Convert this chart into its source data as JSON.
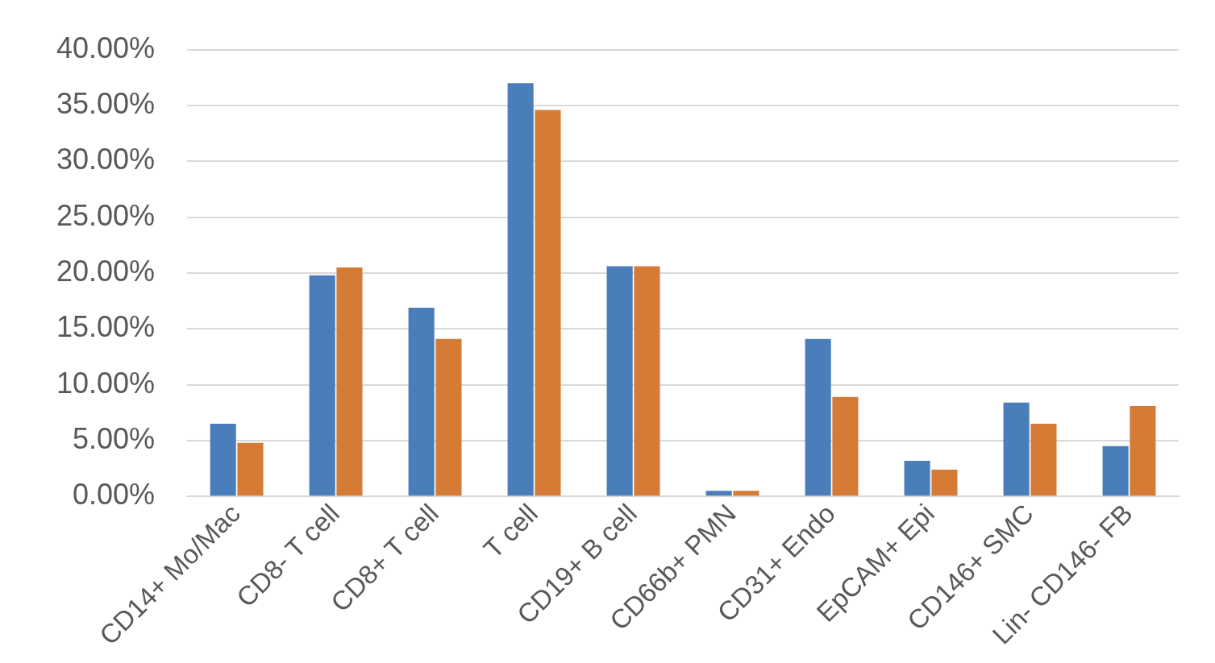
{
  "chart_data": {
    "type": "bar",
    "categories": [
      "CD14+ Mo/Mac",
      "CD8- T cell",
      "CD8+ T cell",
      "T cell",
      "CD19+ B cell",
      "CD66b+ PMN",
      "CD31+ Endo",
      "EpCAM+ Epi",
      "CD146+ SMC",
      "Lin- CD146- FB"
    ],
    "series": [
      {
        "color": "#4a7ebb",
        "values": [
          6.5,
          19.8,
          16.9,
          37.0,
          20.6,
          0.5,
          14.1,
          3.2,
          8.4,
          4.5
        ]
      },
      {
        "color": "#d57b36",
        "values": [
          4.8,
          20.5,
          14.1,
          34.6,
          20.6,
          0.5,
          8.9,
          2.4,
          6.5,
          8.1
        ]
      }
    ],
    "ylim": [
      0,
      40
    ],
    "yticks": [
      {
        "value": 0,
        "label": "0.00%"
      },
      {
        "value": 5,
        "label": "5.00%"
      },
      {
        "value": 10,
        "label": "10.00%"
      },
      {
        "value": 15,
        "label": "15.00%"
      },
      {
        "value": 20,
        "label": "20.00%"
      },
      {
        "value": 25,
        "label": "25.00%"
      },
      {
        "value": 30,
        "label": "30.00%"
      },
      {
        "value": 35,
        "label": "35.00%"
      },
      {
        "value": 40,
        "label": "40.00%"
      }
    ],
    "grid": "y",
    "legend": false
  }
}
